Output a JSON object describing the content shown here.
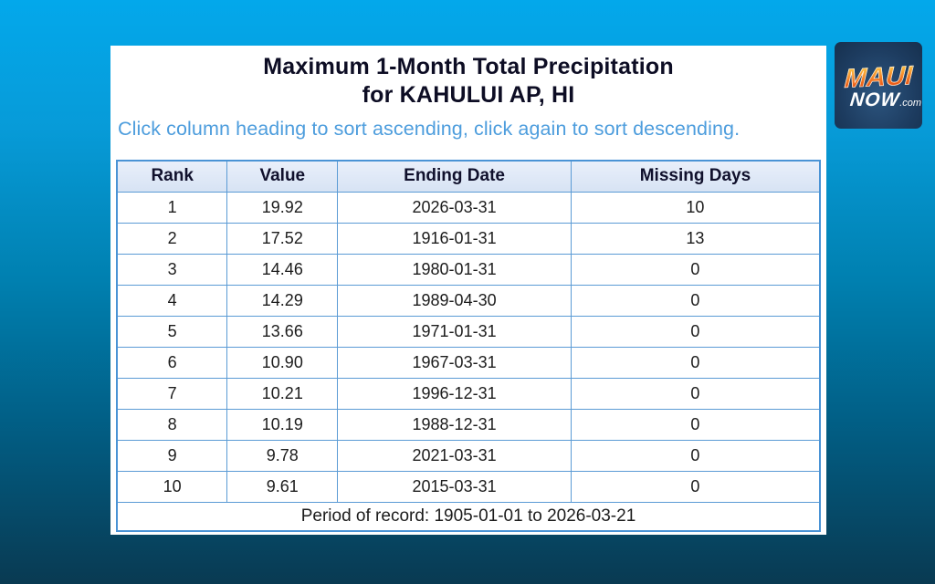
{
  "report": {
    "title_line1": "Maximum 1-Month Total Precipitation",
    "title_line2": "for KAHULUI AP, HI",
    "sort_hint": "Click column heading to sort ascending, click again to sort descending."
  },
  "table": {
    "columns": [
      "Rank",
      "Value",
      "Ending Date",
      "Missing Days"
    ],
    "rows": [
      [
        "1",
        "19.92",
        "2026-03-31",
        "10"
      ],
      [
        "2",
        "17.52",
        "1916-01-31",
        "13"
      ],
      [
        "3",
        "14.46",
        "1980-01-31",
        "0"
      ],
      [
        "4",
        "14.29",
        "1989-04-30",
        "0"
      ],
      [
        "5",
        "13.66",
        "1971-01-31",
        "0"
      ],
      [
        "6",
        "10.90",
        "1967-03-31",
        "0"
      ],
      [
        "7",
        "10.21",
        "1996-12-31",
        "0"
      ],
      [
        "8",
        "10.19",
        "1988-12-31",
        "0"
      ],
      [
        "9",
        "9.78",
        "2021-03-31",
        "0"
      ],
      [
        "10",
        "9.61",
        "2015-03-31",
        "0"
      ]
    ],
    "footer": "Period of record: 1905-01-01 to 2026-03-21"
  },
  "logo": {
    "maui": "MAUI",
    "now": "NOW",
    "com": ".com"
  },
  "colors": {
    "background_top": "#03a8eb",
    "background_bottom": "#093a52",
    "panel_background": "#ffffff",
    "table_border": "#5b9bd5",
    "header_background": "#dde7f6",
    "title_text": "#0d0d24",
    "hint_text": "#4d9ddd",
    "cell_text": "#1c1c1c",
    "logo_background": "#1d3c60",
    "logo_maui_orange": "#f07c1e",
    "logo_now_white": "#ffffff"
  }
}
